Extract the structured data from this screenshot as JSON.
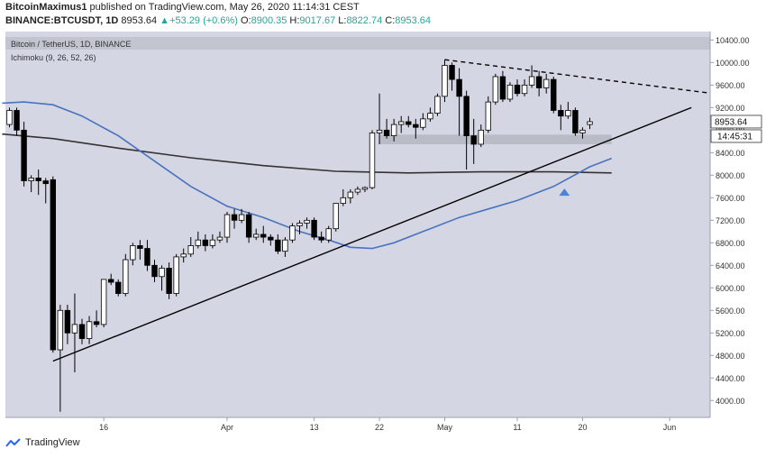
{
  "header": {
    "author": "BitcoinMaximus1",
    "published_text": "published on TradingView.com, May 26, 2020 11:14:31 CEST",
    "symbol": "BINANCE:BTCUSDT, 1D",
    "last": "8953.64",
    "change": "+53.29 (+0.6%)",
    "open": "8900.35",
    "high": "9017.67",
    "low": "8822.74",
    "close": "8953.64",
    "o_label": "O:",
    "h_label": "H:",
    "l_label": "L:",
    "c_label": "C:"
  },
  "chart_data": {
    "type": "candlestick",
    "title": "Bitcoin / TetherUS, 1D, BINANCE",
    "indicator_label": "Ichimoku (9, 26, 52, 26)",
    "ylim": [
      3700,
      10550
    ],
    "y_ticks": [
      4000,
      4400,
      4800,
      5200,
      5600,
      6000,
      6400,
      6800,
      7200,
      7600,
      8000,
      8400,
      8800,
      9200,
      9600,
      10000,
      10400
    ],
    "y_tick_labels": [
      "4000.00",
      "4400.00",
      "4800.00",
      "5200.00",
      "5600.00",
      "6000.00",
      "6400.00",
      "6800.00",
      "7200.00",
      "7600.00",
      "8000.00",
      "8400.00",
      "8800.00",
      "9200.00",
      "9600.00",
      "10000.00",
      "10400.00"
    ],
    "x_labels": [
      {
        "label": "16",
        "day": 13
      },
      {
        "label": "Apr",
        "day": 30
      },
      {
        "label": "13",
        "day": 42
      },
      {
        "label": "22",
        "day": 51
      },
      {
        "label": "May",
        "day": 60
      },
      {
        "label": "11",
        "day": 70
      },
      {
        "label": "20",
        "day": 79
      },
      {
        "label": "Jun",
        "day": 91
      }
    ],
    "candles": [
      {
        "day": 0,
        "o": 8900,
        "h": 9200,
        "l": 8850,
        "c": 9150
      },
      {
        "day": 1,
        "o": 9150,
        "h": 9200,
        "l": 8700,
        "c": 8800
      },
      {
        "day": 2,
        "o": 8800,
        "h": 8950,
        "l": 7800,
        "c": 7900
      },
      {
        "day": 3,
        "o": 7900,
        "h": 8000,
        "l": 7700,
        "c": 7950
      },
      {
        "day": 4,
        "o": 7950,
        "h": 8100,
        "l": 7650,
        "c": 7900
      },
      {
        "day": 5,
        "o": 7900,
        "h": 7950,
        "l": 7500,
        "c": 7850
      },
      {
        "day": 6,
        "o": 7920,
        "h": 7980,
        "l": 4850,
        "c": 4900
      },
      {
        "day": 7,
        "o": 4900,
        "h": 5700,
        "l": 3800,
        "c": 5600
      },
      {
        "day": 8,
        "o": 5600,
        "h": 5700,
        "l": 5000,
        "c": 5200
      },
      {
        "day": 9,
        "o": 5200,
        "h": 5900,
        "l": 4500,
        "c": 5350
      },
      {
        "day": 10,
        "o": 5350,
        "h": 5450,
        "l": 5000,
        "c": 5100
      },
      {
        "day": 11,
        "o": 5100,
        "h": 5500,
        "l": 5000,
        "c": 5400
      },
      {
        "day": 12,
        "o": 5400,
        "h": 5600,
        "l": 5300,
        "c": 5350
      },
      {
        "day": 13,
        "o": 5350,
        "h": 6150,
        "l": 5300,
        "c": 6150
      },
      {
        "day": 14,
        "o": 6150,
        "h": 6250,
        "l": 6050,
        "c": 6100
      },
      {
        "day": 15,
        "o": 6100,
        "h": 6150,
        "l": 5850,
        "c": 5900
      },
      {
        "day": 16,
        "o": 5900,
        "h": 6600,
        "l": 5850,
        "c": 6500
      },
      {
        "day": 17,
        "o": 6500,
        "h": 6800,
        "l": 6400,
        "c": 6750
      },
      {
        "day": 18,
        "o": 6750,
        "h": 6850,
        "l": 6500,
        "c": 6700
      },
      {
        "day": 19,
        "o": 6700,
        "h": 6850,
        "l": 6300,
        "c": 6400
      },
      {
        "day": 20,
        "o": 6400,
        "h": 6500,
        "l": 6100,
        "c": 6200
      },
      {
        "day": 21,
        "o": 6200,
        "h": 6400,
        "l": 5950,
        "c": 6350
      },
      {
        "day": 22,
        "o": 6350,
        "h": 6450,
        "l": 5800,
        "c": 5900
      },
      {
        "day": 23,
        "o": 5900,
        "h": 6600,
        "l": 5850,
        "c": 6550
      },
      {
        "day": 24,
        "o": 6550,
        "h": 6700,
        "l": 6450,
        "c": 6600
      },
      {
        "day": 25,
        "o": 6600,
        "h": 6900,
        "l": 6550,
        "c": 6750
      },
      {
        "day": 26,
        "o": 6750,
        "h": 7000,
        "l": 6700,
        "c": 6850
      },
      {
        "day": 27,
        "o": 6850,
        "h": 6950,
        "l": 6650,
        "c": 6750
      },
      {
        "day": 28,
        "o": 6750,
        "h": 6950,
        "l": 6700,
        "c": 6850
      },
      {
        "day": 29,
        "o": 6850,
        "h": 7000,
        "l": 6800,
        "c": 6900
      },
      {
        "day": 30,
        "o": 6900,
        "h": 7350,
        "l": 6800,
        "c": 7300
      },
      {
        "day": 31,
        "o": 7300,
        "h": 7400,
        "l": 7050,
        "c": 7200
      },
      {
        "day": 32,
        "o": 7200,
        "h": 7400,
        "l": 7150,
        "c": 7300
      },
      {
        "day": 33,
        "o": 7300,
        "h": 7350,
        "l": 6800,
        "c": 6900
      },
      {
        "day": 34,
        "o": 6900,
        "h": 7050,
        "l": 6850,
        "c": 6950
      },
      {
        "day": 35,
        "o": 6950,
        "h": 7100,
        "l": 6800,
        "c": 6900
      },
      {
        "day": 36,
        "o": 6900,
        "h": 6950,
        "l": 6750,
        "c": 6850
      },
      {
        "day": 37,
        "o": 6850,
        "h": 6950,
        "l": 6600,
        "c": 6650
      },
      {
        "day": 38,
        "o": 6650,
        "h": 6900,
        "l": 6550,
        "c": 6850
      },
      {
        "day": 39,
        "o": 6850,
        "h": 7150,
        "l": 6800,
        "c": 7100
      },
      {
        "day": 40,
        "o": 7100,
        "h": 7200,
        "l": 6950,
        "c": 7150
      },
      {
        "day": 41,
        "o": 7150,
        "h": 7250,
        "l": 7050,
        "c": 7200
      },
      {
        "day": 42,
        "o": 7200,
        "h": 7250,
        "l": 6850,
        "c": 6900
      },
      {
        "day": 43,
        "o": 6900,
        "h": 7000,
        "l": 6800,
        "c": 6850
      },
      {
        "day": 44,
        "o": 6850,
        "h": 7100,
        "l": 6800,
        "c": 7050
      },
      {
        "day": 45,
        "o": 7050,
        "h": 7500,
        "l": 7000,
        "c": 7500
      },
      {
        "day": 46,
        "o": 7500,
        "h": 7750,
        "l": 7450,
        "c": 7600
      },
      {
        "day": 47,
        "o": 7600,
        "h": 7750,
        "l": 7500,
        "c": 7700
      },
      {
        "day": 48,
        "o": 7700,
        "h": 7800,
        "l": 7650,
        "c": 7750
      },
      {
        "day": 49,
        "o": 7750,
        "h": 7800,
        "l": 7700,
        "c": 7780
      },
      {
        "day": 50,
        "o": 7780,
        "h": 8800,
        "l": 7750,
        "c": 8750
      },
      {
        "day": 51,
        "o": 8750,
        "h": 9450,
        "l": 8550,
        "c": 8800
      },
      {
        "day": 52,
        "o": 8800,
        "h": 9000,
        "l": 8650,
        "c": 8700
      },
      {
        "day": 53,
        "o": 8700,
        "h": 9000,
        "l": 8600,
        "c": 8900
      },
      {
        "day": 54,
        "o": 8900,
        "h": 9050,
        "l": 8750,
        "c": 8950
      },
      {
        "day": 55,
        "o": 8950,
        "h": 9050,
        "l": 8850,
        "c": 8900
      },
      {
        "day": 56,
        "o": 8900,
        "h": 9000,
        "l": 8650,
        "c": 8850
      },
      {
        "day": 57,
        "o": 8850,
        "h": 9100,
        "l": 8800,
        "c": 9000
      },
      {
        "day": 58,
        "o": 9000,
        "h": 9200,
        "l": 8950,
        "c": 9100
      },
      {
        "day": 59,
        "o": 9100,
        "h": 9450,
        "l": 9050,
        "c": 9400
      },
      {
        "day": 60,
        "o": 9400,
        "h": 10050,
        "l": 9300,
        "c": 9950
      },
      {
        "day": 61,
        "o": 9950,
        "h": 10000,
        "l": 9500,
        "c": 9700
      },
      {
        "day": 62,
        "o": 9700,
        "h": 9900,
        "l": 8700,
        "c": 9400
      },
      {
        "day": 63,
        "o": 9400,
        "h": 9500,
        "l": 8100,
        "c": 8700
      },
      {
        "day": 64,
        "o": 8700,
        "h": 9000,
        "l": 8200,
        "c": 8550
      },
      {
        "day": 65,
        "o": 8550,
        "h": 8900,
        "l": 8500,
        "c": 8800
      },
      {
        "day": 66,
        "o": 8800,
        "h": 9400,
        "l": 8750,
        "c": 9300
      },
      {
        "day": 67,
        "o": 9300,
        "h": 9800,
        "l": 9250,
        "c": 9750
      },
      {
        "day": 68,
        "o": 9750,
        "h": 9850,
        "l": 9300,
        "c": 9350
      },
      {
        "day": 69,
        "o": 9350,
        "h": 9650,
        "l": 9300,
        "c": 9600
      },
      {
        "day": 70,
        "o": 9600,
        "h": 9700,
        "l": 9400,
        "c": 9450
      },
      {
        "day": 71,
        "o": 9450,
        "h": 9700,
        "l": 9400,
        "c": 9600
      },
      {
        "day": 72,
        "o": 9600,
        "h": 9950,
        "l": 9550,
        "c": 9750
      },
      {
        "day": 73,
        "o": 9750,
        "h": 9850,
        "l": 9400,
        "c": 9550
      },
      {
        "day": 74,
        "o": 9550,
        "h": 9800,
        "l": 9450,
        "c": 9700
      },
      {
        "day": 75,
        "o": 9700,
        "h": 9750,
        "l": 9100,
        "c": 9150
      },
      {
        "day": 76,
        "o": 9150,
        "h": 9250,
        "l": 8800,
        "c": 9050
      },
      {
        "day": 77,
        "o": 9050,
        "h": 9300,
        "l": 9000,
        "c": 9150
      },
      {
        "day": 78,
        "o": 9150,
        "h": 9200,
        "l": 8700,
        "c": 8750
      },
      {
        "day": 79,
        "o": 8750,
        "h": 8850,
        "l": 8650,
        "c": 8800
      },
      {
        "day": 80,
        "o": 8900,
        "h": 9020,
        "l": 8820,
        "c": 8950
      }
    ],
    "support_zone": {
      "day_start": 51,
      "day_end": 83,
      "low": 8550,
      "high": 8720
    },
    "trend_lines": [
      {
        "name": "ascending-support",
        "from": {
          "day": 6,
          "price": 4700
        },
        "to": {
          "day": 94,
          "price": 9200
        }
      },
      {
        "name": "descending-resistance",
        "dashed": true,
        "from": {
          "day": 60,
          "price": 10050
        },
        "to": {
          "day": 97,
          "price": 9450
        }
      }
    ],
    "ma_dark": [
      {
        "day": -1,
        "v": 8730
      },
      {
        "day": 6,
        "v": 8650
      },
      {
        "day": 15,
        "v": 8480
      },
      {
        "day": 25,
        "v": 8310
      },
      {
        "day": 35,
        "v": 8170
      },
      {
        "day": 45,
        "v": 8070
      },
      {
        "day": 55,
        "v": 8040
      },
      {
        "day": 65,
        "v": 8060
      },
      {
        "day": 75,
        "v": 8060
      },
      {
        "day": 83,
        "v": 8040
      }
    ],
    "ma_blue": [
      {
        "day": -1,
        "v": 9280
      },
      {
        "day": 2,
        "v": 9300
      },
      {
        "day": 6,
        "v": 9250
      },
      {
        "day": 10,
        "v": 9050
      },
      {
        "day": 15,
        "v": 8700
      },
      {
        "day": 20,
        "v": 8250
      },
      {
        "day": 25,
        "v": 7800
      },
      {
        "day": 30,
        "v": 7450
      },
      {
        "day": 35,
        "v": 7250
      },
      {
        "day": 40,
        "v": 7000
      },
      {
        "day": 44,
        "v": 6850
      },
      {
        "day": 47,
        "v": 6720
      },
      {
        "day": 50,
        "v": 6700
      },
      {
        "day": 53,
        "v": 6800
      },
      {
        "day": 57,
        "v": 7000
      },
      {
        "day": 62,
        "v": 7250
      },
      {
        "day": 66,
        "v": 7400
      },
      {
        "day": 70,
        "v": 7550
      },
      {
        "day": 75,
        "v": 7800
      },
      {
        "day": 80,
        "v": 8150
      },
      {
        "day": 83,
        "v": 8300
      }
    ],
    "marker": {
      "day": 76.5,
      "price": 7700
    },
    "last_price_label": "8953.64",
    "countdown_label": "14:45:31",
    "colors": {
      "background": "#d4d7e3",
      "title_band": "#c2c5d0",
      "up_fill": "#ffffff",
      "down_fill": "#000000",
      "blue_line": "#4a72bf",
      "dark_line": "#333333",
      "marker": "#4a84d6",
      "zone": "#b9bcc6"
    }
  },
  "footer": {
    "brand": "TradingView"
  }
}
